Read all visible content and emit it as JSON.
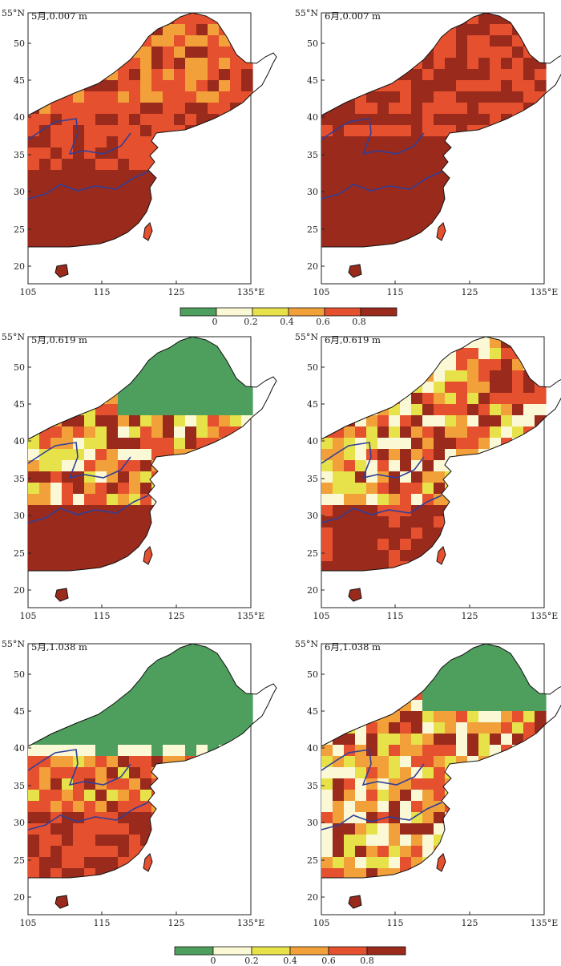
{
  "panels": [
    {
      "title": "5月,0.007 m",
      "scheme": "a"
    },
    {
      "title": "6月,0.007 m",
      "scheme": "b"
    },
    {
      "title": "5月,0.619 m",
      "scheme": "c"
    },
    {
      "title": "6月,0.619 m",
      "scheme": "d"
    },
    {
      "title": "5月,1.038 m",
      "scheme": "e"
    },
    {
      "title": "6月,1.038 m",
      "scheme": "f"
    }
  ],
  "axes": {
    "lat_ticks": [
      "55°N",
      "50",
      "45",
      "40",
      "35",
      "30",
      "25",
      "20"
    ],
    "lon_ticks": [
      "105",
      "115",
      "125",
      "135°E"
    ]
  },
  "colorbars": [
    {
      "labels": [
        "0",
        "0.2",
        "0.4",
        "0.6",
        "0.8"
      ]
    },
    {
      "labels": [
        "0",
        "0.2",
        "0.4",
        "0.6",
        "0.8"
      ]
    }
  ],
  "colors": {
    "class_colors": [
      "#4e9e5e",
      "#fbf8d6",
      "#e7e24a",
      "#f2a03a",
      "#e5502f",
      "#9a2a1c"
    ],
    "river": "#2f3f99",
    "coast": "#111111"
  }
}
